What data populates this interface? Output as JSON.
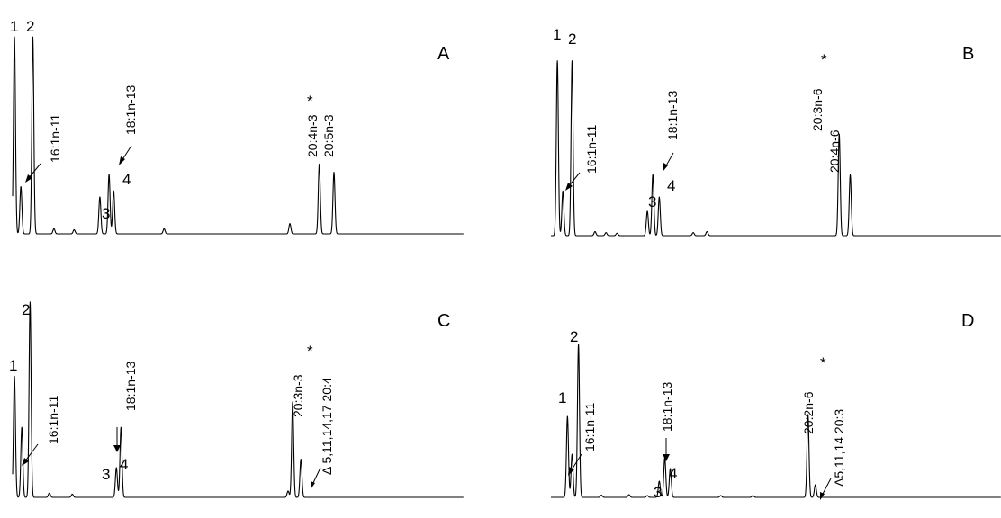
{
  "chart_data": [
    {
      "type": "line",
      "panel": "A",
      "peaks": [
        {
          "x": 0.2,
          "h": 0.96,
          "label": "1"
        },
        {
          "x": 0.9,
          "h": 0.23
        },
        {
          "x": 2.2,
          "h": 0.96,
          "label": "2"
        },
        {
          "x": 9.5,
          "h": 0.18,
          "label": "3"
        },
        {
          "x": 10.5,
          "h": 0.29
        },
        {
          "x": 11.0,
          "h": 0.21,
          "label": "4"
        },
        {
          "x": 33.4,
          "h": 0.34
        },
        {
          "x": 35.0,
          "h": 0.3
        }
      ],
      "annotations": [
        {
          "text": "16:1n-11",
          "x": 1.2
        },
        {
          "text": "18:1n-13",
          "x": 10.5
        },
        {
          "text": "20:4n-3",
          "star": true,
          "x": 33.4
        },
        {
          "text": "20:5n-3",
          "x": 35.0
        }
      ]
    },
    {
      "type": "line",
      "panel": "B",
      "peaks": [
        {
          "x": 0.7,
          "h": 0.86,
          "label": "1"
        },
        {
          "x": 1.3,
          "h": 0.22
        },
        {
          "x": 2.3,
          "h": 0.86,
          "label": "2"
        },
        {
          "x": 10.5,
          "h": 0.12,
          "label": "3"
        },
        {
          "x": 11.1,
          "h": 0.3
        },
        {
          "x": 11.8,
          "h": 0.19,
          "label": "4"
        },
        {
          "x": 31.4,
          "h": 0.5
        },
        {
          "x": 32.6,
          "h": 0.3
        }
      ],
      "annotations": [
        {
          "text": "16:1n-11",
          "x": 1.5
        },
        {
          "text": "18:1n-13",
          "x": 11.1
        },
        {
          "text": "20:3n-6",
          "star": true,
          "x": 31.4
        },
        {
          "text": "20:4n-6",
          "x": 32.6
        }
      ]
    },
    {
      "type": "line",
      "panel": "C",
      "peaks": [
        {
          "x": 0.2,
          "h": 0.57,
          "label": "1"
        },
        {
          "x": 1.0,
          "h": 0.33
        },
        {
          "x": 1.9,
          "h": 0.92,
          "label": "2"
        },
        {
          "x": 11.3,
          "h": 0.14,
          "label": "3"
        },
        {
          "x": 11.8,
          "h": 0.33,
          "label": "4"
        },
        {
          "x": 30.5,
          "h": 0.45
        },
        {
          "x": 31.4,
          "h": 0.18
        }
      ],
      "annotations": [
        {
          "text": "16:1n-11",
          "x": 1.1
        },
        {
          "text": "18:1n-13",
          "x": 11.8
        },
        {
          "text": "20:3n-3",
          "star": true,
          "x": 30.5
        },
        {
          "text": "Δ 5,11,14,17 20:4",
          "x": 31.4
        }
      ]
    },
    {
      "type": "line",
      "panel": "D",
      "peaks": [
        {
          "x": 1.8,
          "h": 0.45,
          "label": "1"
        },
        {
          "x": 2.3,
          "h": 0.24
        },
        {
          "x": 3.0,
          "h": 0.85,
          "label": "2"
        },
        {
          "x": 11.8,
          "h": 0.09,
          "label": "3"
        },
        {
          "x": 12.4,
          "h": 0.22
        },
        {
          "x": 13.0,
          "h": 0.16,
          "label": "4"
        },
        {
          "x": 28.0,
          "h": 0.46
        },
        {
          "x": 28.8,
          "h": 0.07
        }
      ],
      "annotations": [
        {
          "text": "16:1n-11",
          "x": 2.2
        },
        {
          "text": "18:1n-13",
          "x": 12.4
        },
        {
          "text": "20:2n-6",
          "star": true,
          "x": 28.0
        },
        {
          "text": "Δ5,11,14 20:3",
          "x": 28.8
        }
      ]
    }
  ]
}
